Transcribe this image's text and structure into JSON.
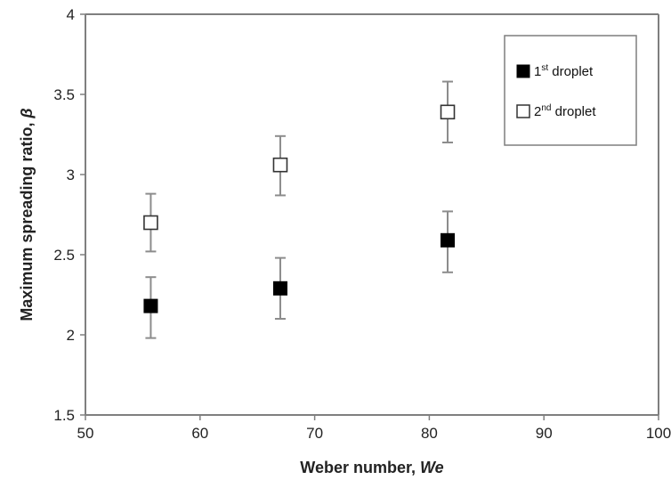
{
  "chart_data": {
    "type": "scatter",
    "xlabel": {
      "text": "Weber number, ",
      "italic": "We"
    },
    "ylabel": {
      "text": "Maximum spreading ratio, ",
      "italic": "β"
    },
    "xlim": [
      50,
      100
    ],
    "ylim": [
      1.5,
      4
    ],
    "xticks": [
      50,
      60,
      70,
      80,
      90,
      100
    ],
    "yticks": [
      1.5,
      2,
      2.5,
      3,
      3.5,
      4
    ],
    "xtick_labels": [
      "50",
      "60",
      "70",
      "80",
      "90",
      "100"
    ],
    "ytick_labels": [
      "1.5",
      "2",
      "2.5",
      "3",
      "3.5",
      "4"
    ],
    "grid": false,
    "legend_position": "top-right",
    "series": [
      {
        "name": {
          "base": "1",
          "sup": "st",
          "rest": " droplet"
        },
        "marker": "filled-square",
        "color": "#000000",
        "x": [
          55.7,
          67.0,
          81.6
        ],
        "y": [
          2.18,
          2.29,
          2.59
        ],
        "err_low": [
          1.98,
          2.1,
          2.39
        ],
        "err_high": [
          2.36,
          2.48,
          2.77
        ]
      },
      {
        "name": {
          "base": "2",
          "sup": "nd",
          "rest": " droplet"
        },
        "marker": "open-square",
        "color": "#000000",
        "x": [
          55.7,
          67.0,
          81.6
        ],
        "y": [
          2.7,
          3.06,
          3.39
        ],
        "err_low": [
          2.52,
          2.87,
          3.2
        ],
        "err_high": [
          2.88,
          3.24,
          3.58
        ]
      }
    ],
    "colors": {
      "axis": "#7f7f7f",
      "errorbar": "#8c8c8c",
      "text": "#222222"
    }
  }
}
